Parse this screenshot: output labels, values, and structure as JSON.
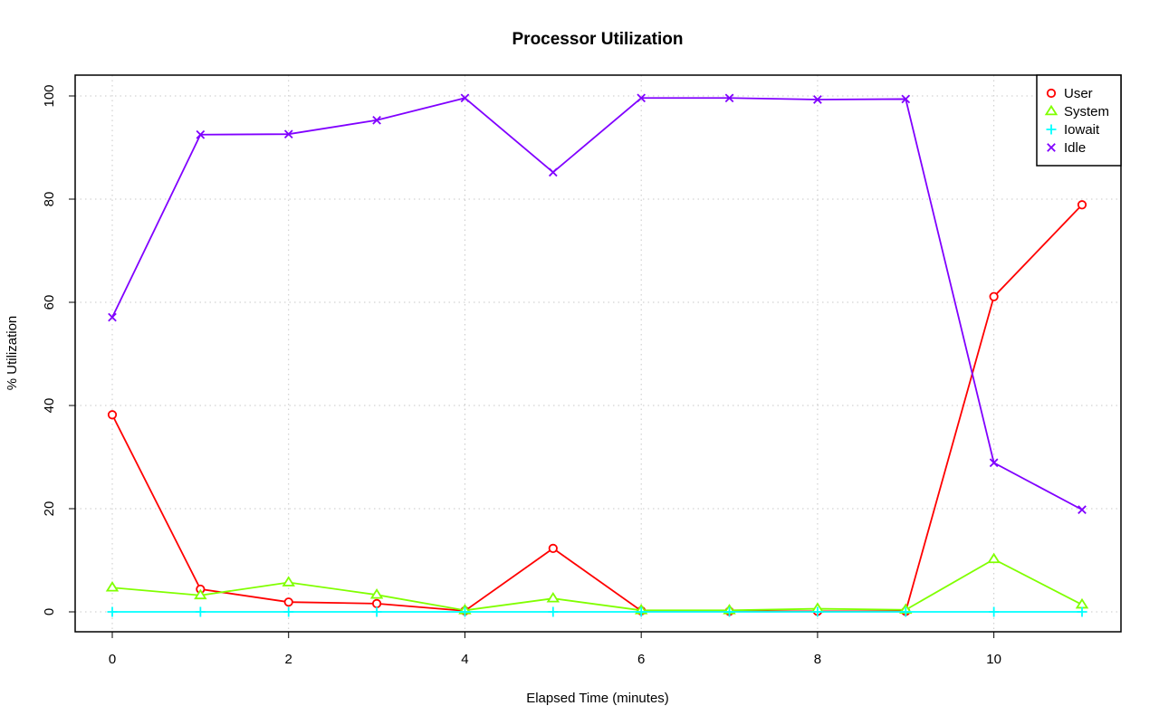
{
  "chart_data": {
    "type": "line",
    "title": "Processor Utilization",
    "xlabel": "Elapsed Time (minutes)",
    "ylabel": "% Utilization",
    "x": [
      0,
      1,
      2,
      3,
      4,
      5,
      6,
      7,
      8,
      9,
      10,
      11
    ],
    "xlim": [
      0,
      11
    ],
    "ylim": [
      0,
      100
    ],
    "x_ticks": [
      0,
      2,
      4,
      6,
      8,
      10
    ],
    "y_ticks": [
      0,
      20,
      40,
      60,
      80,
      100
    ],
    "x_tick_labels": [
      "0",
      "2",
      "4",
      "6",
      "8",
      "10"
    ],
    "y_tick_labels": [
      "0",
      "20",
      "40",
      "60",
      "80",
      "100"
    ],
    "grid": true,
    "legend_position": "top-right",
    "series": [
      {
        "name": "User",
        "color": "#ff0000",
        "marker": "circle",
        "values": [
          38.2,
          4.4,
          1.9,
          1.6,
          0.2,
          12.3,
          0.2,
          0.1,
          0.1,
          0.1,
          61.1,
          78.9
        ]
      },
      {
        "name": "System",
        "color": "#80ff00",
        "marker": "triangle",
        "values": [
          4.7,
          3.2,
          5.7,
          3.3,
          0.3,
          2.6,
          0.3,
          0.3,
          0.6,
          0.4,
          10.2,
          1.4
        ]
      },
      {
        "name": "Iowait",
        "color": "#00ffff",
        "marker": "plus",
        "values": [
          0,
          0,
          0,
          0,
          0,
          0,
          0,
          0,
          0,
          0,
          0,
          0
        ]
      },
      {
        "name": "Idle",
        "color": "#8000ff",
        "marker": "cross",
        "values": [
          57.1,
          92.5,
          92.6,
          95.3,
          99.6,
          85.2,
          99.6,
          99.6,
          99.3,
          99.4,
          28.9,
          19.8
        ]
      }
    ]
  }
}
